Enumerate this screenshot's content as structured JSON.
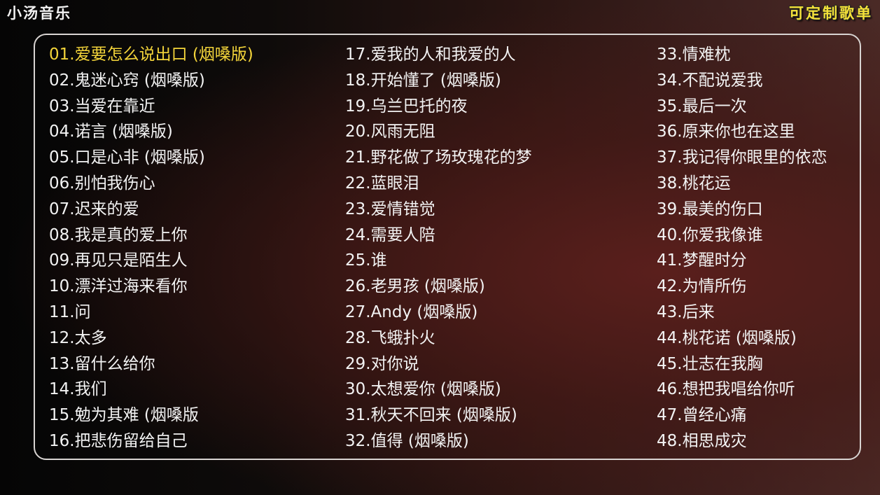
{
  "header": {
    "brand": "小汤音乐",
    "tagline": "可定制歌单"
  },
  "colors": {
    "active": "#f3d43a",
    "text": "#f3f3f3",
    "border": "#d8d4d2"
  },
  "active_index": 0,
  "songs": [
    "01.爱要怎么说出口 (烟嗓版)",
    "02.鬼迷心窍 (烟嗓版)",
    "03.当爱在靠近",
    "04.诺言 (烟嗓版)",
    "05.口是心非 (烟嗓版)",
    "06.别怕我伤心",
    "07.迟来的爱",
    "08.我是真的爱上你",
    "09.再见只是陌生人",
    "10.漂洋过海来看你",
    "11.问",
    "12.太多",
    "13.留什么给你",
    "14.我们",
    "15.勉为其难 (烟嗓版",
    "16.把悲伤留给自己",
    "17.爱我的人和我爱的人",
    "18.开始懂了 (烟嗓版)",
    "19.乌兰巴托的夜",
    "20.风雨无阻",
    "21.野花做了场玫瑰花的梦",
    "22.蓝眼泪",
    "23.爱情错觉",
    "24.需要人陪",
    "25.谁",
    "26.老男孩 (烟嗓版)",
    "27.Andy (烟嗓版)",
    "28.飞蛾扑火",
    "29.对你说",
    "30.太想爱你 (烟嗓版)",
    "31.秋天不回来 (烟嗓版)",
    "32.值得 (烟嗓版)",
    "33.情难枕",
    "34.不配说爱我",
    "35.最后一次",
    "36.原来你也在这里",
    "37.我记得你眼里的依恋",
    "38.桃花运",
    "39.最美的伤口",
    "40.你爱我像谁",
    "41.梦醒时分",
    "42.为情所伤",
    "43.后来",
    "44.桃花诺 (烟嗓版)",
    "45.壮志在我胸",
    "46.想把我唱给你听",
    "47.曾经心痛",
    "48.相思成灾"
  ]
}
